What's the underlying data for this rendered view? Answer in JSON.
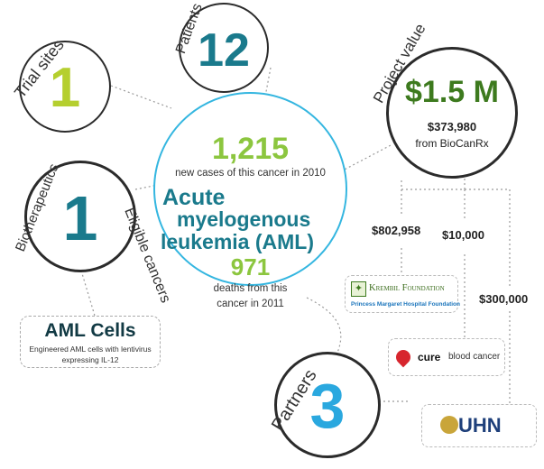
{
  "trial_sites": {
    "label": "Trial sites",
    "value": "1"
  },
  "patients": {
    "label": "Patients",
    "value": "12"
  },
  "project_value": {
    "label": "Project value",
    "value": "$1.5 M",
    "sub_amount": "$373,980",
    "sub_source": "from BioCanRx"
  },
  "biotherapeutics": {
    "label": "Biotherapeutics",
    "value": "1"
  },
  "main": {
    "new_cases_value": "1,215",
    "new_cases_text": "new cases of this cancer in 2010",
    "cancer_line1": "Acute",
    "cancer_line2": "myelogenous",
    "cancer_line3": "leukemia (AML)",
    "deaths_value": "971",
    "deaths_line1": "deaths from this",
    "deaths_line2": "cancer in 2011"
  },
  "eligible_cancers": {
    "label": "Eligible cancers"
  },
  "aml_cells": {
    "title": "AML Cells",
    "desc_line1": "Engineered AML cells with lentivirus",
    "desc_line2": "expressing IL-12"
  },
  "partners": {
    "label": "Partners",
    "value": "3"
  },
  "amounts": {
    "a1": "$802,958",
    "a2": "$10,000",
    "a3": "$300,000"
  },
  "logos": {
    "krembil_name": "Krembil Foundation",
    "pmh_name": "Princess Margaret Hospital Foundation",
    "cure_word": "cure",
    "cure_rest": "blood cancer",
    "uhn": "UHN"
  },
  "colors": {
    "green": "#8cc63f",
    "lime": "#b5cf2f",
    "teal": "#1a7a8c",
    "blue": "#2aa8df",
    "darkgreen": "#3d7a1e",
    "dark": "#123a44"
  }
}
